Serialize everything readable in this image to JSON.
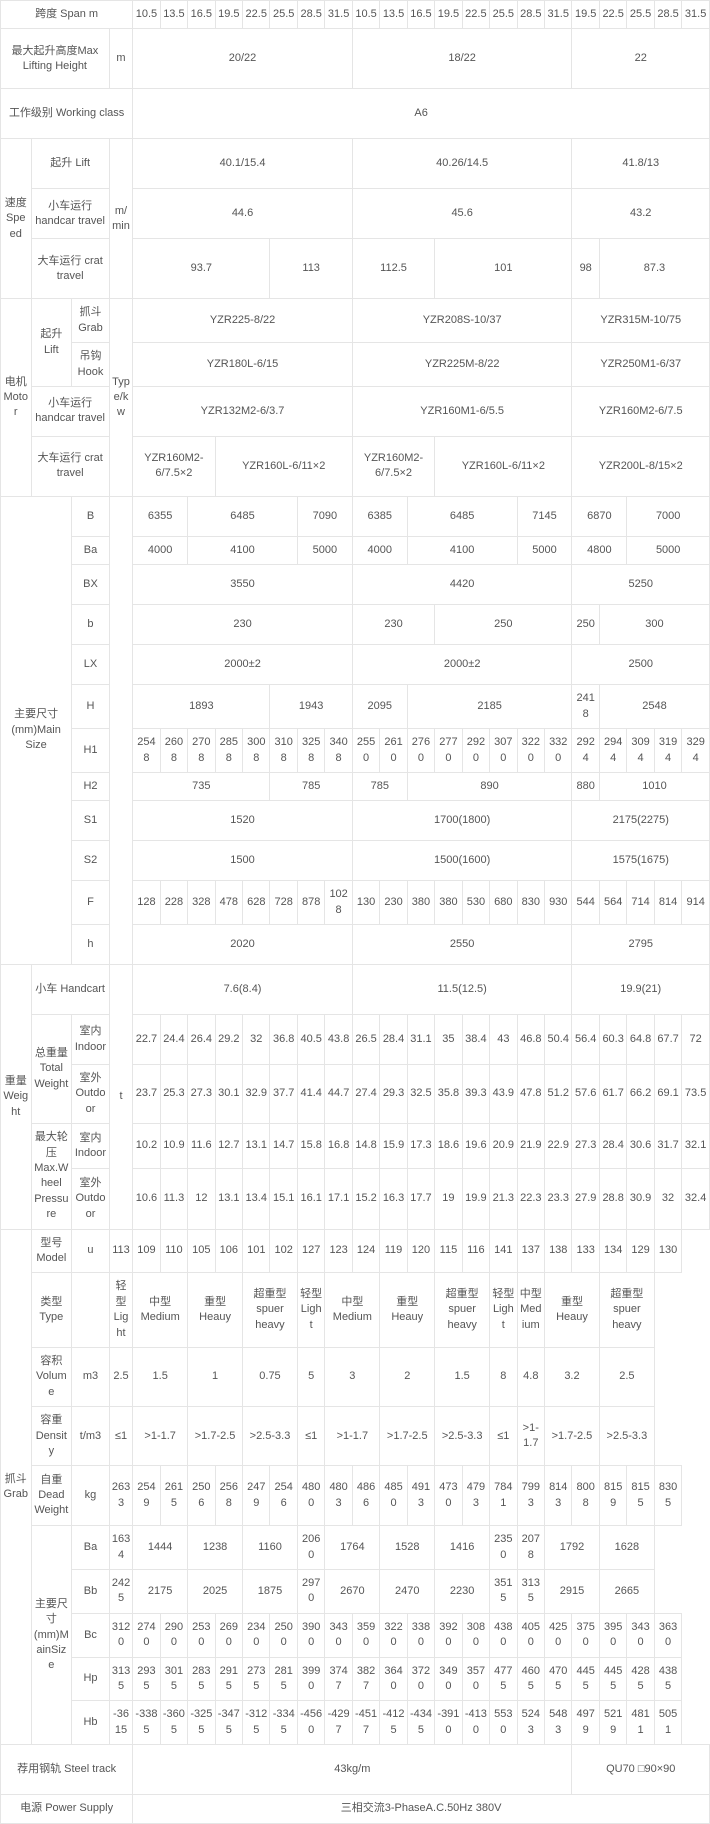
{
  "rows": {
    "spanLabel": "跨度 Span m",
    "spanVals": [
      "10.5",
      "13.5",
      "16.5",
      "19.5",
      "22.5",
      "25.5",
      "28.5",
      "31.5",
      "10.5",
      "13.5",
      "16.5",
      "19.5",
      "22.5",
      "25.5",
      "28.5",
      "31.5",
      "19.5",
      "22.5",
      "25.5",
      "28.5",
      "31.5"
    ],
    "liftHeightLabel": "最大起升高度Max Lifting Height",
    "liftHeightUnit": "m",
    "liftHeightVals": [
      "20/22",
      "18/22",
      "22"
    ],
    "workClassLabel": "工作级别 Working class",
    "workClassVal": "A6",
    "speedLabel": "速度Speed",
    "speedUnit": "m/min",
    "speedLift": "起升 Lift",
    "speedLiftVals": [
      "40.1/15.4",
      "40.26/14.5",
      "41.8/13"
    ],
    "speedHand": "小车运行 handcar travel",
    "speedHandVals": [
      "44.6",
      "45.6",
      "43.2"
    ],
    "speedCrat": "大车运行 crat travel",
    "speedCratVals": [
      "93.7",
      "113",
      "112.5",
      "101",
      "98",
      "87.3"
    ],
    "motorLabel": "电机Motor",
    "motorUnit": "Type/kw",
    "motorLift": "起升Lift",
    "motorGrab": "抓斗Grab",
    "motorGrabVals": [
      "YZR225-8/22",
      "YZR208S-10/37",
      "YZR315M-10/75"
    ],
    "motorHook": "吊钩Hook",
    "motorHookVals": [
      "YZR180L-6/15",
      "YZR225M-8/22",
      "YZR250M1-6/37"
    ],
    "motorHand": "小车运行 handcar travel",
    "motorHandVals": [
      "YZR132M2-6/3.7",
      "YZR160M1-6/5.5",
      "YZR160M2-6/7.5"
    ],
    "motorCrat": "大车运行 crat travel",
    "motorCratVals": [
      "YZR160M2-6/7.5×2",
      "YZR160L-6/11×2",
      "YZR160M2-6/7.5×2",
      "YZR160L-6/11×2",
      "YZR200L-8/15×2"
    ],
    "mainSizeLabel": "主要尺寸(mm)Main Size",
    "B": "B",
    "BVals": [
      "6355",
      "6485",
      "7090",
      "6385",
      "6485",
      "7145",
      "6870",
      "7000"
    ],
    "Ba": "Ba",
    "BaVals": [
      "4000",
      "4100",
      "5000",
      "4000",
      "4100",
      "5000",
      "4800",
      "5000"
    ],
    "BX": "BX",
    "BXVals": [
      "3550",
      "4420",
      "5250"
    ],
    "b_": "b",
    "bVals": [
      "230",
      "230",
      "250",
      "250",
      "300"
    ],
    "LX": "LX",
    "LXVals": [
      "2000±2",
      "2000±2",
      "2500"
    ],
    "H": "H",
    "HVals": [
      "1893",
      "1943",
      "2095",
      "2185",
      "2418",
      "2548"
    ],
    "H1": "H1",
    "H1Vals": [
      "2548",
      "2608",
      "2708",
      "2858",
      "3008",
      "3108",
      "3258",
      "3408",
      "2550",
      "2610",
      "2760",
      "2770",
      "2920",
      "3070",
      "3220",
      "3320",
      "2924",
      "2944",
      "3094",
      "3194",
      "3294"
    ],
    "H2": "H2",
    "H2Vals": [
      "735",
      "785",
      "785",
      "890",
      "880",
      "1010"
    ],
    "S1": "S1",
    "S1Vals": [
      "1520",
      "1700(1800)",
      "2175(2275)"
    ],
    "S2": "S2",
    "S2Vals": [
      "1500",
      "1500(1600)",
      "1575(1675)"
    ],
    "F": "F",
    "FVals": [
      "128",
      "228",
      "328",
      "478",
      "628",
      "728",
      "878",
      "1028",
      "130",
      "230",
      "380",
      "380",
      "530",
      "680",
      "830",
      "930",
      "544",
      "564",
      "714",
      "814",
      "914"
    ],
    "h_": "h",
    "hVals": [
      "2020",
      "2550",
      "2795"
    ],
    "weightLabel": "重量Weight",
    "weightUnit": "t",
    "handcart": "小车 Handcart",
    "handcartVals": [
      "7.6(8.4)",
      "11.5(12.5)",
      "19.9(21)"
    ],
    "totalW": "总重量Total Weight",
    "indoor": "室内Indoor",
    "outdoor": "室外Outdoor",
    "totalInVals": [
      "22.7",
      "24.4",
      "26.4",
      "29.2",
      "32",
      "36.8",
      "40.5",
      "43.8",
      "26.5",
      "28.4",
      "31.1",
      "35",
      "38.4",
      "43",
      "46.8",
      "50.4",
      "56.4",
      "60.3",
      "64.8",
      "67.7",
      "72"
    ],
    "totalOutVals": [
      "23.7",
      "25.3",
      "27.3",
      "30.1",
      "32.9",
      "37.7",
      "41.4",
      "44.7",
      "27.4",
      "29.3",
      "32.5",
      "35.8",
      "39.3",
      "43.9",
      "47.8",
      "51.2",
      "57.6",
      "61.7",
      "66.2",
      "69.1",
      "73.5"
    ],
    "maxWheel": "最大轮压Max.Wheel Pressure",
    "wheelInVals": [
      "10.2",
      "10.9",
      "11.6",
      "12.7",
      "13.1",
      "14.7",
      "15.8",
      "16.8",
      "14.8",
      "15.9",
      "17.3",
      "18.6",
      "19.6",
      "20.9",
      "21.9",
      "22.9",
      "27.3",
      "28.4",
      "30.6",
      "31.7",
      "32.1"
    ],
    "wheelOutVals": [
      "10.6",
      "11.3",
      "12",
      "13.1",
      "13.4",
      "15.1",
      "16.1",
      "17.1",
      "15.2",
      "16.3",
      "17.7",
      "19",
      "19.9",
      "21.3",
      "22.3",
      "23.3",
      "27.9",
      "28.8",
      "30.9",
      "32",
      "32.4"
    ],
    "grabLabel": "抓斗Grab",
    "modelLabel": "型号Model",
    "modelUnit": "u",
    "modelVals": [
      "113",
      "109",
      "110",
      "105",
      "106",
      "101",
      "102",
      "127",
      "123",
      "124",
      "119",
      "120",
      "115",
      "116",
      "141",
      "137",
      "138",
      "133",
      "134",
      "129",
      "130"
    ],
    "typeLabel": "类型Type",
    "typeVals": [
      "轻型Light",
      "中型Medium",
      "重型Heauy",
      "超重型spuer heavy",
      "轻型Light",
      "中型Medium",
      "重型Heauy",
      "超重型spuer heavy",
      "轻型Light",
      "中型Medium",
      "重型Heauy",
      "超重型spuer heavy"
    ],
    "volLabel": "容积Volume",
    "volUnit": "m3",
    "volVals": [
      "2.5",
      "1.5",
      "1",
      "0.75",
      "5",
      "3",
      "2",
      "1.5",
      "8",
      "4.8",
      "3.2",
      "2.5"
    ],
    "denLabel": "容重Density",
    "denUnit": "t/m3",
    "denVals": [
      "≤1",
      ">1-1.7",
      ">1.7-2.5",
      ">2.5-3.3",
      "≤1",
      ">1-1.7",
      ">1.7-2.5",
      ">2.5-3.3",
      "≤1",
      ">1-1.7",
      ">1.7-2.5",
      ">2.5-3.3"
    ],
    "deadLabel": "自重Dead Weight",
    "deadUnit": "kg",
    "deadVals": [
      "2633",
      "2549",
      "2615",
      "2506",
      "2568",
      "2479",
      "2546",
      "4800",
      "4803",
      "4866",
      "4850",
      "4913",
      "4730",
      "4793",
      "7841",
      "7993",
      "8143",
      "8008",
      "8159",
      "8155",
      "8305"
    ],
    "ms2Label": "主要尺寸(mm)MainSize",
    "Ba2": "Ba",
    "Ba2Vals": [
      "1634",
      "1444",
      "1238",
      "1160",
      "2060",
      "1764",
      "1528",
      "1416",
      "2350",
      "2078",
      "1792",
      "1628"
    ],
    "Bb": "Bb",
    "BbVals": [
      "2425",
      "2175",
      "2025",
      "1875",
      "2970",
      "2670",
      "2470",
      "2230",
      "3515",
      "3135",
      "2915",
      "2665"
    ],
    "Bc": "Bc",
    "BcVals": [
      "3120",
      "2740",
      "2900",
      "2530",
      "2690",
      "2340",
      "2500",
      "3900",
      "3430",
      "3590",
      "3220",
      "3380",
      "3920",
      "3080",
      "4380",
      "4050",
      "4250",
      "3750",
      "3950",
      "3430",
      "3630"
    ],
    "Hp": "Hp",
    "HpVals": [
      "3135",
      "2935",
      "3015",
      "2835",
      "2915",
      "2735",
      "2815",
      "3990",
      "3747",
      "3827",
      "3640",
      "3720",
      "3490",
      "3570",
      "4775",
      "4605",
      "4705",
      "4455",
      "4455",
      "4285",
      "4385"
    ],
    "Hb": "Hb",
    "HbVals": [
      "-3615",
      "-3385",
      "-3605",
      "-3255",
      "-3475",
      "-3125",
      "-3345",
      "-4560",
      "-4297",
      "-4517",
      "-4125",
      "-4345",
      "-3910",
      "-4130",
      "5530",
      "5243",
      "5483",
      "4979",
      "5219",
      "4811",
      "5051"
    ],
    "trackLabel": "荐用钢轨 Steel track",
    "trackVals": [
      "43kg/m",
      "QU70 □90×90"
    ],
    "powerLabel": "电源 Power Supply",
    "powerVal": "三相交流3-PhaseA.C.50Hz 380V"
  },
  "typeColspans": [
    1,
    2,
    2,
    2,
    1,
    2,
    2,
    2,
    1,
    1,
    2,
    2
  ],
  "volColspans": [
    1,
    2,
    2,
    2,
    1,
    2,
    2,
    2,
    1,
    1,
    2,
    2
  ],
  "denColspans": [
    1,
    2,
    2,
    2,
    1,
    2,
    2,
    2,
    1,
    1,
    2,
    2
  ],
  "Ba2Colspans": [
    1,
    2,
    2,
    2,
    1,
    2,
    2,
    2,
    1,
    1,
    2,
    2
  ],
  "BbColspans": [
    1,
    2,
    2,
    2,
    1,
    2,
    2,
    2,
    1,
    1,
    2,
    2
  ],
  "BColspans": [
    2,
    4,
    2,
    2,
    4,
    2,
    2,
    3
  ],
  "BaColspans": [
    2,
    4,
    2,
    2,
    4,
    2,
    2,
    3
  ],
  "bColspans": [
    8,
    3,
    5,
    1,
    4
  ],
  "HColspans": [
    5,
    3,
    2,
    6,
    1,
    4
  ],
  "H2Colspans": [
    5,
    3,
    2,
    6,
    1,
    4
  ],
  "cratColspans": [
    5,
    3,
    3,
    5,
    1,
    4
  ],
  "motorCratColspans": [
    3,
    5,
    3,
    5,
    5
  ]
}
